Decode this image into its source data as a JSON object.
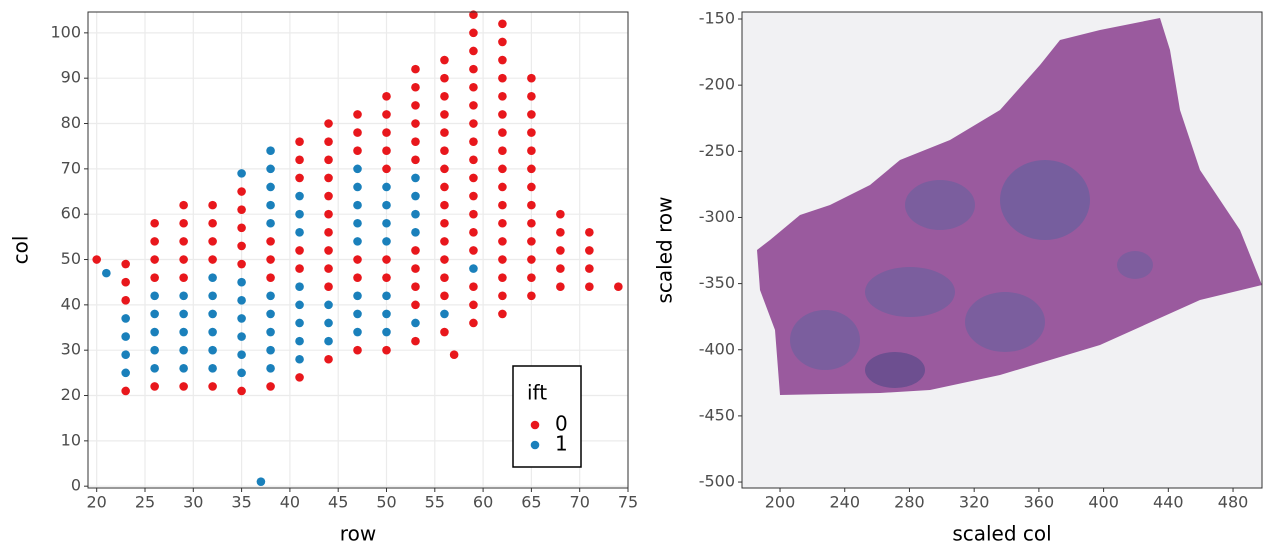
{
  "chart_data": [
    {
      "type": "scatter",
      "x_label": "row",
      "y_label": "col",
      "xlim": [
        19.1,
        75
      ],
      "ylim": [
        -0.4,
        104.6
      ],
      "xticks": [
        20,
        25,
        30,
        35,
        40,
        45,
        50,
        55,
        60,
        65,
        70,
        75
      ],
      "yticks": [
        0,
        10,
        20,
        30,
        40,
        50,
        60,
        70,
        80,
        90,
        100
      ],
      "grid": true,
      "legend_title": "ift",
      "legend_position": "bottom-right",
      "series": [
        {
          "name": "0",
          "color": "#e8171c",
          "x": [
            20,
            23,
            23,
            23,
            23,
            26,
            26,
            26,
            26,
            26,
            29,
            29,
            29,
            29,
            29,
            29,
            32,
            32,
            32,
            32,
            32,
            35,
            35,
            35,
            35,
            35,
            35,
            38,
            38,
            38,
            38,
            41,
            41,
            41,
            41,
            41,
            41,
            44,
            44,
            44,
            44,
            44,
            44,
            44,
            44,
            44,
            44,
            44,
            47,
            47,
            47,
            47,
            47,
            47,
            50,
            50,
            50,
            50,
            50,
            50,
            50,
            50,
            53,
            53,
            53,
            53,
            53,
            53,
            53,
            53,
            53,
            53,
            53,
            56,
            56,
            56,
            56,
            56,
            56,
            56,
            56,
            56,
            56,
            56,
            56,
            56,
            56,
            56,
            59,
            59,
            59,
            59,
            59,
            59,
            59,
            59,
            59,
            59,
            59,
            59,
            59,
            59,
            59,
            59,
            59,
            62,
            62,
            62,
            62,
            62,
            62,
            62,
            62,
            62,
            62,
            62,
            62,
            62,
            62,
            62,
            62,
            62,
            65,
            65,
            65,
            65,
            65,
            65,
            65,
            65,
            65,
            65,
            65,
            65,
            65,
            68,
            68,
            68,
            68,
            68,
            71,
            71,
            71,
            71,
            74,
            57
          ],
          "y": [
            50,
            21,
            41,
            45,
            49,
            22,
            46,
            50,
            54,
            58,
            22,
            46,
            50,
            54,
            58,
            62,
            22,
            50,
            54,
            58,
            62,
            21,
            49,
            53,
            57,
            61,
            65,
            22,
            46,
            50,
            54,
            24,
            48,
            52,
            68,
            72,
            76,
            28,
            44,
            48,
            52,
            56,
            60,
            64,
            68,
            72,
            76,
            80,
            30,
            46,
            50,
            74,
            78,
            82,
            30,
            46,
            50,
            70,
            74,
            78,
            82,
            86,
            32,
            40,
            44,
            48,
            52,
            72,
            76,
            80,
            84,
            88,
            92,
            34,
            42,
            46,
            50,
            54,
            58,
            62,
            66,
            70,
            74,
            78,
            82,
            86,
            90,
            94,
            36,
            40,
            44,
            52,
            56,
            60,
            64,
            68,
            72,
            76,
            80,
            84,
            88,
            92,
            96,
            100,
            104,
            38,
            42,
            46,
            50,
            54,
            58,
            62,
            66,
            70,
            74,
            78,
            82,
            86,
            90,
            94,
            98,
            102,
            42,
            46,
            50,
            54,
            58,
            62,
            66,
            70,
            74,
            78,
            82,
            86,
            90,
            44,
            48,
            52,
            56,
            60,
            44,
            48,
            52,
            56,
            44,
            29
          ]
        },
        {
          "name": "1",
          "color": "#1a80bb",
          "x": [
            21,
            23,
            23,
            23,
            23,
            26,
            26,
            26,
            26,
            26,
            29,
            29,
            29,
            29,
            29,
            32,
            32,
            32,
            32,
            32,
            32,
            35,
            35,
            35,
            35,
            35,
            35,
            35,
            38,
            38,
            38,
            38,
            38,
            38,
            38,
            38,
            38,
            38,
            41,
            41,
            41,
            41,
            41,
            41,
            41,
            41,
            44,
            44,
            44,
            47,
            47,
            47,
            47,
            47,
            47,
            47,
            47,
            50,
            50,
            50,
            50,
            50,
            50,
            50,
            53,
            53,
            53,
            53,
            53,
            56,
            59,
            37
          ],
          "y": [
            47,
            25,
            29,
            33,
            37,
            26,
            30,
            34,
            38,
            42,
            26,
            30,
            34,
            38,
            42,
            26,
            30,
            34,
            38,
            42,
            46,
            25,
            29,
            33,
            37,
            41,
            45,
            69,
            26,
            30,
            34,
            38,
            42,
            58,
            62,
            66,
            70,
            74,
            28,
            32,
            36,
            40,
            44,
            56,
            60,
            64,
            32,
            36,
            40,
            34,
            38,
            42,
            54,
            58,
            62,
            66,
            70,
            34,
            38,
            42,
            54,
            58,
            62,
            66,
            36,
            56,
            60,
            64,
            68,
            38,
            48,
            1
          ]
        }
      ]
    },
    {
      "type": "image",
      "x_label": "scaled col",
      "y_label": "scaled row",
      "xlim": [
        176.5,
        497.9
      ],
      "ylim": [
        -504.5,
        -144.7
      ],
      "xticks": [
        200,
        240,
        280,
        320,
        360,
        400,
        440,
        480
      ],
      "yticks": [
        -500,
        -450,
        -400,
        -350,
        -300,
        -250,
        -200,
        -150
      ]
    }
  ]
}
